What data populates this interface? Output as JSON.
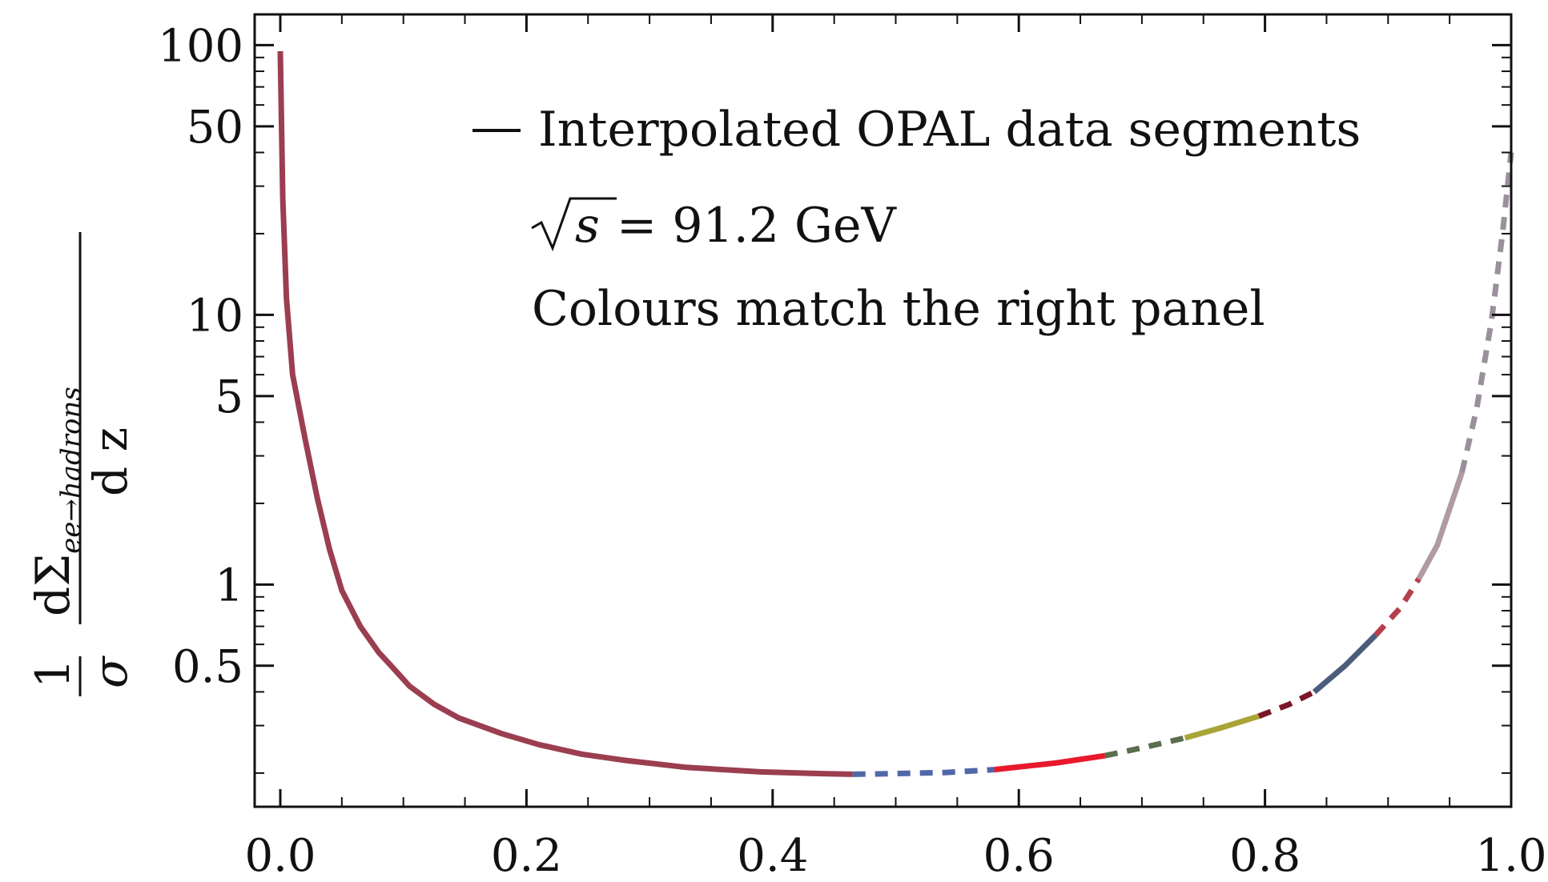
{
  "chart_data": {
    "type": "line",
    "title": "",
    "xlabel": "",
    "ylabel": {
      "prefix": "1",
      "sigma": "σ",
      "numerator": "dΣ",
      "subscript": "ee→hadrons",
      "denominator": "d z"
    },
    "xlim": [
      0.0,
      1.0
    ],
    "ylim": [
      0.15,
      130
    ],
    "yscale": "log",
    "xticks": [
      {
        "value": 0.0,
        "label": "0.0"
      },
      {
        "value": 0.2,
        "label": "0.2"
      },
      {
        "value": 0.4,
        "label": "0.4"
      },
      {
        "value": 0.6,
        "label": "0.6"
      },
      {
        "value": 0.8,
        "label": "0.8"
      },
      {
        "value": 1.0,
        "label": "1.0"
      }
    ],
    "yticks": [
      {
        "value": 0.5,
        "label": "0.5"
      },
      {
        "value": 1,
        "label": "1"
      },
      {
        "value": 5,
        "label": "5"
      },
      {
        "value": 10,
        "label": "10"
      },
      {
        "value": 50,
        "label": "50"
      },
      {
        "value": 100,
        "label": "100"
      }
    ],
    "annotations": {
      "legend": "Interpolated OPAL data segments",
      "energy_lhs": "s",
      "energy_rhs": "= 91.2 GeV",
      "note": "Colours match the right panel"
    },
    "series": [
      {
        "color": "#9b3e50",
        "style": "solid",
        "x": [
          0.0,
          0.002,
          0.005,
          0.01,
          0.02,
          0.03,
          0.04,
          0.05,
          0.065,
          0.08,
          0.09,
          0.105,
          0.125,
          0.145,
          0.18,
          0.21,
          0.245,
          0.28,
          0.33,
          0.39,
          0.44,
          0.465
        ],
        "y": [
          95,
          27,
          11.5,
          6.0,
          3.5,
          2.1,
          1.35,
          0.95,
          0.7,
          0.56,
          0.5,
          0.42,
          0.36,
          0.32,
          0.28,
          0.255,
          0.235,
          0.223,
          0.21,
          0.202,
          0.199,
          0.198
        ]
      },
      {
        "color": "#5068a8",
        "style": "dashed",
        "x": [
          0.465,
          0.5,
          0.54,
          0.58
        ],
        "y": [
          0.198,
          0.199,
          0.201,
          0.206
        ]
      },
      {
        "color": "#e8192c",
        "style": "solid",
        "x": [
          0.58,
          0.63,
          0.67
        ],
        "y": [
          0.206,
          0.218,
          0.232
        ]
      },
      {
        "color": "#5a6e4d",
        "style": "dashed",
        "x": [
          0.67,
          0.7,
          0.735
        ],
        "y": [
          0.232,
          0.248,
          0.27
        ]
      },
      {
        "color": "#a8a437",
        "style": "solid",
        "x": [
          0.735,
          0.765,
          0.795
        ],
        "y": [
          0.27,
          0.295,
          0.325
        ]
      },
      {
        "color": "#7a1727",
        "style": "dashed",
        "x": [
          0.795,
          0.82,
          0.84
        ],
        "y": [
          0.325,
          0.36,
          0.4
        ]
      },
      {
        "color": "#4a5d7a",
        "style": "solid",
        "x": [
          0.84,
          0.865,
          0.89
        ],
        "y": [
          0.4,
          0.5,
          0.65
        ]
      },
      {
        "color": "#b5404c",
        "style": "dashed",
        "x": [
          0.89,
          0.91,
          0.925
        ],
        "y": [
          0.65,
          0.82,
          1.05
        ]
      },
      {
        "color": "#b09aa4",
        "style": "solid",
        "x": [
          0.925,
          0.94,
          0.96
        ],
        "y": [
          1.05,
          1.4,
          2.6
        ]
      },
      {
        "color": "#99909b",
        "style": "dashed",
        "x": [
          0.96,
          0.972,
          0.984,
          0.993,
          1.0
        ],
        "y": [
          2.6,
          4.5,
          9.5,
          20,
          40
        ]
      }
    ]
  }
}
